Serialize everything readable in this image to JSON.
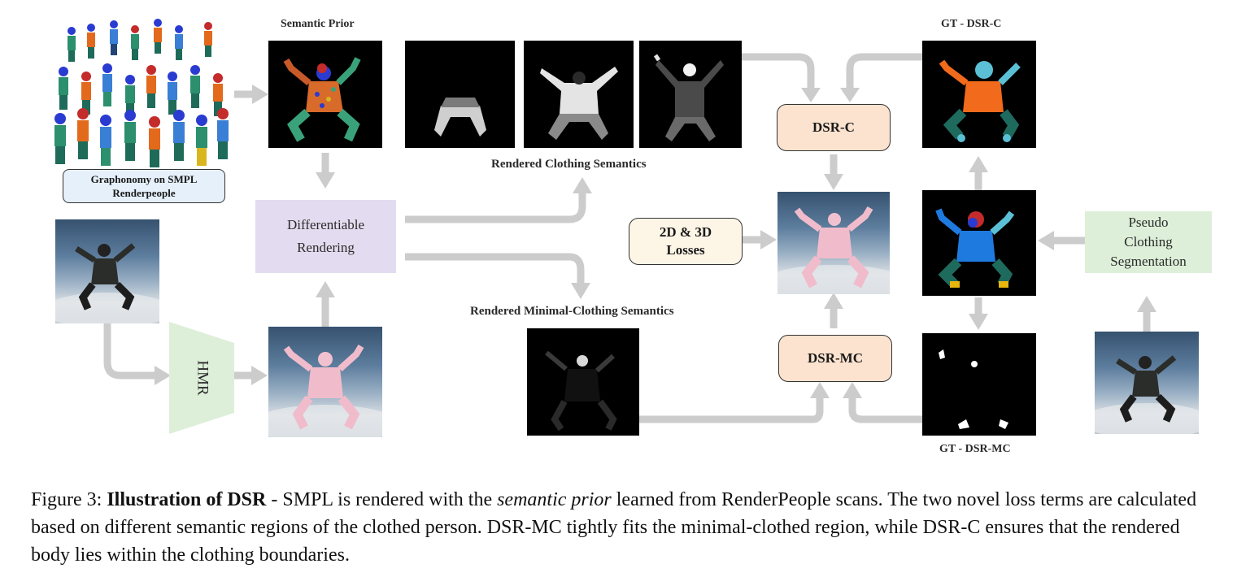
{
  "labels": {
    "semantic_prior": "Semantic Prior",
    "graphonomy_line1": "Graphonomy on SMPL",
    "graphonomy_line2": "Renderpeople",
    "rendered_clothing": "Rendered Clothing Semantics",
    "rendered_minimal": "Rendered Minimal-Clothing Semantics",
    "gt_dsr_c": "GT - DSR-C",
    "gt_dsr_mc": "GT - DSR-MC"
  },
  "nodes": {
    "differentiable_line1": "Differentiable",
    "differentiable_line2": "Rendering",
    "hmr": "HMR",
    "dsr_c": "DSR-C",
    "dsr_mc": "DSR-MC",
    "losses_line1": "2D & 3D",
    "losses_line2": "Losses",
    "pseudo_line1": "Pseudo",
    "pseudo_line2": "Clothing",
    "pseudo_line3": "Segmentation"
  },
  "caption": {
    "figure": "Figure 3: ",
    "bold": "Illustration of DSR",
    "part1": " - SMPL is rendered with the ",
    "italic": "semantic prior",
    "part2": " learned from RenderPeople scans. The two novel loss terms are calculated based on different semantic regions of the clothed person. DSR-MC tightly fits the minimal-clothed region, while DSR-C ensures that the rendered body lies within the clothing boundaries."
  },
  "colors": {
    "arrow": "#cccccc",
    "peach": "#fbe3cf",
    "cream": "#fdf5e6",
    "purple": "#e3dbef",
    "green": "#ddefd9",
    "blue": "#e5f0fb"
  }
}
